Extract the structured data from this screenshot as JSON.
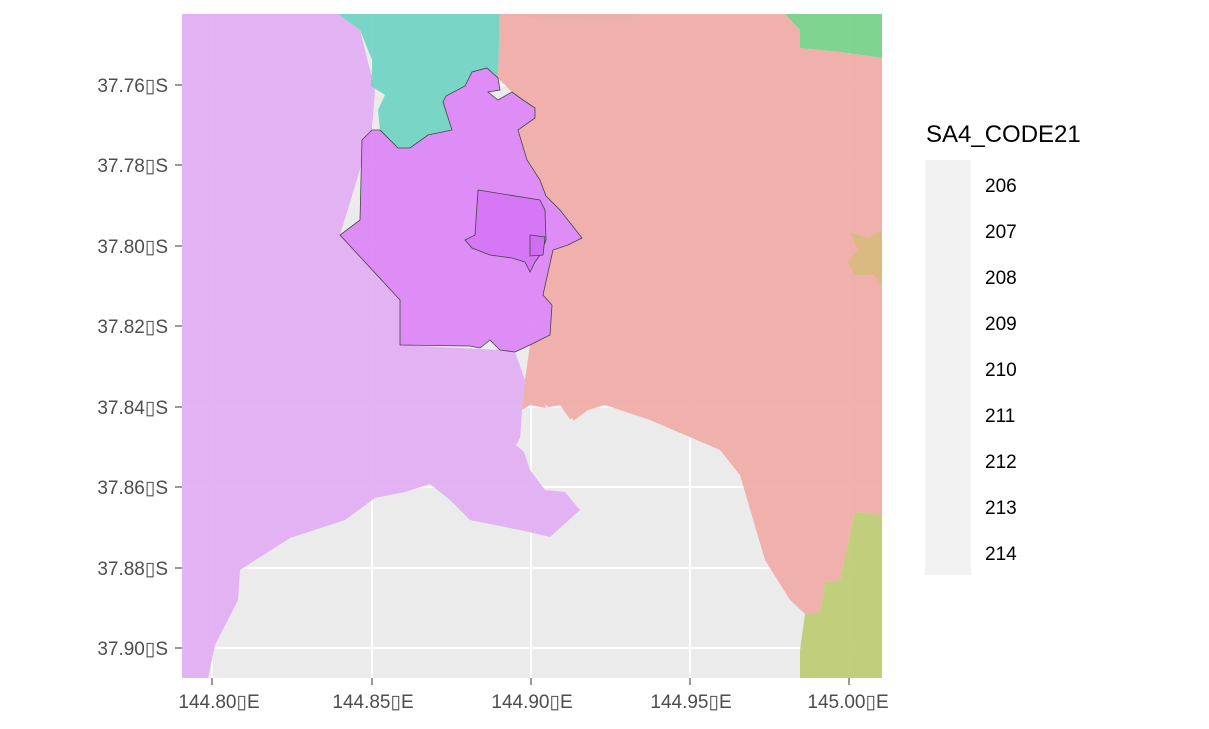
{
  "map": {
    "panel_background": "#ebebeb",
    "gridline_color": "#ffffff",
    "x_ticks": [
      "144.80▯E",
      "144.85▯E",
      "144.90▯E",
      "144.95▯E",
      "145.00▯E"
    ],
    "y_ticks": [
      "37.76▯S",
      "37.78▯S",
      "37.80▯S",
      "37.82▯S",
      "37.84▯S",
      "37.86▯S",
      "37.88▯S",
      "37.90▯S"
    ],
    "x_lim": [
      144.783,
      145.005
    ],
    "y_lim": [
      -37.908,
      -37.743
    ],
    "regions": [
      {
        "code": "206",
        "color": "#f0aeaa",
        "area": "inner-east"
      },
      {
        "code": "209",
        "color": "#73d4c4",
        "area": "north"
      },
      {
        "code": "210",
        "color": "#79d48b",
        "area": "north-east corner"
      },
      {
        "code": "211",
        "color": "#d9ba7e",
        "area": "east edge"
      },
      {
        "code": "212",
        "color": "#bfcc75",
        "area": "south-east"
      },
      {
        "code": "213",
        "color": "#e2acf3",
        "area": "west"
      },
      {
        "code": "206",
        "color": "#dc88f5",
        "area": "city centre outline"
      }
    ]
  },
  "legend": {
    "title": "SA4_CODE21",
    "items": [
      "206",
      "207",
      "208",
      "209",
      "210",
      "211",
      "212",
      "213",
      "214"
    ],
    "key_color": "#f2f2f2"
  }
}
